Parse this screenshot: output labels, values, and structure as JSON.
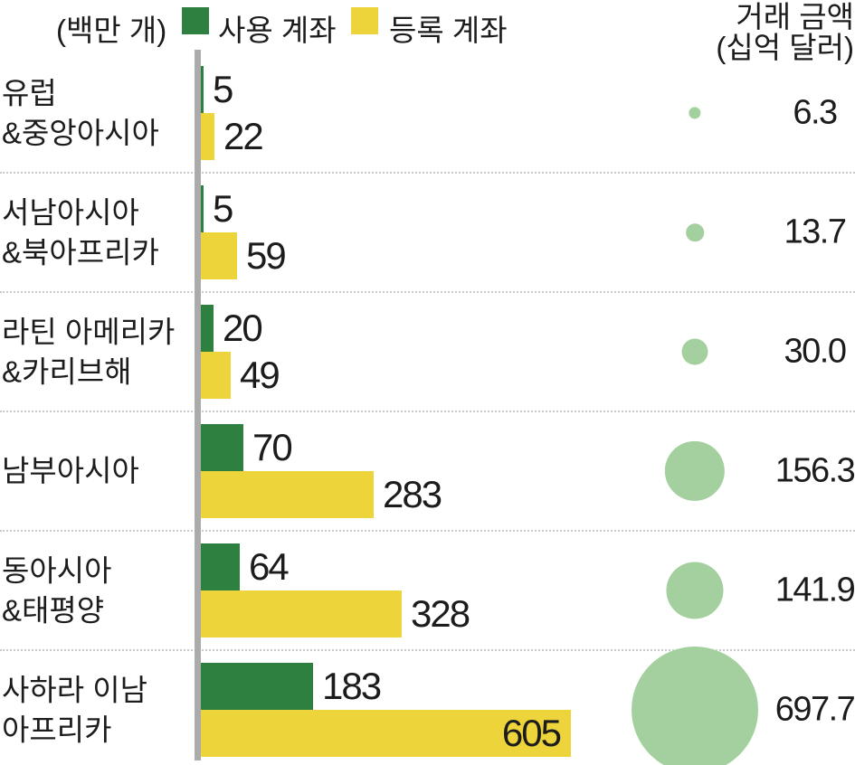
{
  "header": {
    "unit_label": "(백만 개)",
    "legend": [
      {
        "label": "사용 계좌",
        "color_hex": "#2e8040"
      },
      {
        "label": "등록 계좌",
        "color_hex": "#edd43a"
      }
    ],
    "amount_title_line1": "거래 금액",
    "amount_title_line2": "(십억 달러)"
  },
  "chart_data": {
    "type": "bar",
    "subtype": "horizontal grouped bars with proportional bubble column",
    "unit_note": "(백만 개)",
    "bubble_unit_note": "거래 금액 (십억 달러)",
    "categories": [
      "유럽&중앙아시아",
      "서남아시아&북아프리카",
      "라틴 아메리카&카리브해",
      "남부아시아",
      "동아시아&태평양",
      "사하라 이남 아프리카"
    ],
    "series": [
      {
        "name": "사용 계좌",
        "color_hex": "#2e8040",
        "values": [
          5,
          5,
          20,
          70,
          64,
          183
        ]
      },
      {
        "name": "등록 계좌",
        "color_hex": "#edd43a",
        "values": [
          22,
          59,
          49,
          283,
          328,
          605
        ]
      }
    ],
    "bubble_series": {
      "name": "거래 금액 (십억 달러)",
      "color_hex": "#a3d09e",
      "values": [
        6.3,
        13.7,
        30.0,
        156.3,
        141.9,
        697.7
      ]
    },
    "rows": [
      {
        "label_lines": [
          "유럽",
          "&중앙아시아"
        ],
        "active_label": "5",
        "registered_label": "22",
        "amount_label": "6.3"
      },
      {
        "label_lines": [
          "서남아시아",
          "&북아프리카"
        ],
        "active_label": "5",
        "registered_label": "59",
        "amount_label": "13.7"
      },
      {
        "label_lines": [
          "라틴 아메리카",
          "&카리브해"
        ],
        "active_label": "20",
        "registered_label": "49",
        "amount_label": "30.0"
      },
      {
        "label_lines": [
          "남부아시아"
        ],
        "active_label": "70",
        "registered_label": "283",
        "amount_label": "156.3"
      },
      {
        "label_lines": [
          "동아시아",
          "&태평양"
        ],
        "active_label": "64",
        "registered_label": "328",
        "amount_label": "141.9"
      },
      {
        "label_lines": [
          "사하라 이남",
          "아프리카"
        ],
        "active_label": "183",
        "registered_label": "605",
        "amount_label": "697.7"
      }
    ],
    "legend_position": "top",
    "grid": "dotted horizontal separators between rows",
    "axis": "vertical gray baseline at left edge of bars",
    "xlim_millions": [
      0,
      640
    ]
  },
  "colors": {
    "bar_active": "#2e8040",
    "bar_registered": "#edd43a",
    "bubble": "#a3d09e",
    "axis_line": "#ababab",
    "separator": "#c9c9c9",
    "bottom_rule": "#dcdcdc",
    "text": "#1c1c1c",
    "background": "#ffffff"
  }
}
